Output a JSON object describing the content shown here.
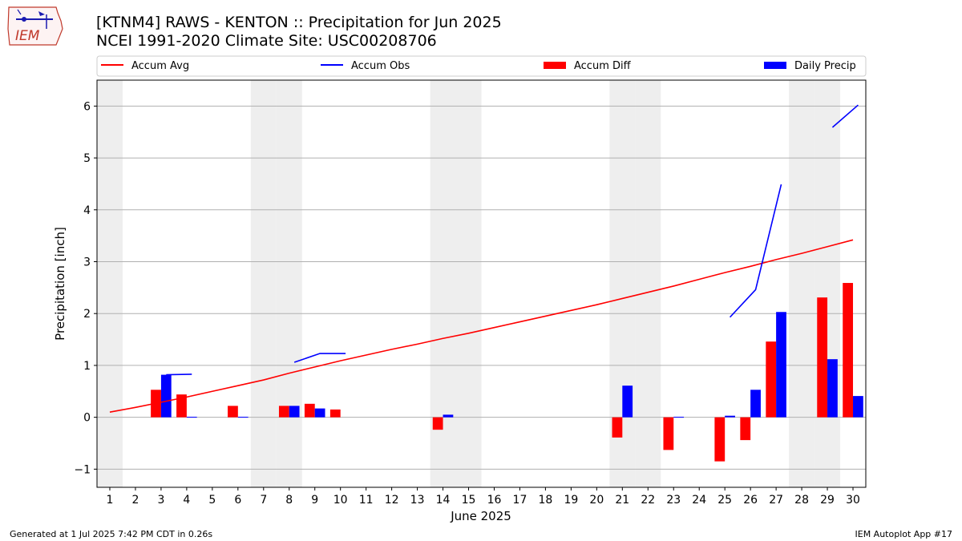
{
  "header": {
    "title_line1": "[KTNM4] RAWS - KENTON :: Precipitation for Jun 2025",
    "title_line2": "NCEI 1991-2020 Climate Site: USC00208706",
    "logo_text": "IEM"
  },
  "footer": {
    "left": "Generated at 1 Jul 2025 7:42 PM CDT in 0.26s",
    "right": "IEM Autoplot App #17"
  },
  "colors": {
    "accum_avg": "#ff0000",
    "accum_obs": "#0000ff",
    "accum_diff": "#ff0000",
    "daily_precip": "#0000ff",
    "weekend_shade": "#eeeeee",
    "grid": "#b0b0b0"
  },
  "chart_data": {
    "type": "bar",
    "xlabel": "June 2025",
    "ylabel": "Precipitation [inch]",
    "x": [
      1,
      2,
      3,
      4,
      5,
      6,
      7,
      8,
      9,
      10,
      11,
      12,
      13,
      14,
      15,
      16,
      17,
      18,
      19,
      20,
      21,
      22,
      23,
      24,
      25,
      26,
      27,
      28,
      29,
      30
    ],
    "xlim": [
      0.5,
      30.5
    ],
    "ylim": [
      -1.35,
      6.5
    ],
    "yticks": [
      -1,
      0,
      1,
      2,
      3,
      4,
      5,
      6
    ],
    "ytick_labels": [
      "−1",
      "0",
      "1",
      "2",
      "3",
      "4",
      "5",
      "6"
    ],
    "grid": "y",
    "legend_position": "top",
    "weekend_days": [
      1,
      7,
      8,
      14,
      15,
      21,
      22,
      28,
      29
    ],
    "series": [
      {
        "name": "Accum Avg",
        "kind": "line",
        "values": [
          0.1,
          0.19,
          0.29,
          0.39,
          0.5,
          0.61,
          0.72,
          0.85,
          0.97,
          1.09,
          1.2,
          1.31,
          1.41,
          1.52,
          1.62,
          1.73,
          1.84,
          1.95,
          2.06,
          2.17,
          2.29,
          2.41,
          2.53,
          2.66,
          2.79,
          2.91,
          3.04,
          3.16,
          3.29,
          3.42
        ]
      },
      {
        "name": "Accum Obs",
        "kind": "line",
        "segments": [
          [
            [
              3,
              0.82
            ],
            [
              4,
              0.83
            ]
          ],
          [
            [
              8,
              1.06
            ],
            [
              9,
              1.23
            ],
            [
              10,
              1.23
            ]
          ],
          [
            [
              25,
              1.93
            ],
            [
              26,
              2.46
            ],
            [
              27,
              4.49
            ]
          ],
          [
            [
              29,
              5.59
            ],
            [
              30,
              6.02
            ]
          ]
        ]
      },
      {
        "name": "Accum Diff",
        "kind": "bar",
        "points": [
          [
            3,
            0.53
          ],
          [
            4,
            0.44
          ],
          [
            6,
            0.22
          ],
          [
            8,
            0.22
          ],
          [
            9,
            0.26
          ],
          [
            10,
            0.15
          ],
          [
            14,
            -0.24
          ],
          [
            21,
            -0.39
          ],
          [
            23,
            -0.63
          ],
          [
            25,
            -0.85
          ],
          [
            26,
            -0.44
          ],
          [
            27,
            1.46
          ],
          [
            29,
            2.31
          ],
          [
            30,
            2.59
          ]
        ]
      },
      {
        "name": "Daily Precip",
        "kind": "bar",
        "points": [
          [
            3,
            0.82
          ],
          [
            4,
            0.01
          ],
          [
            6,
            0.01
          ],
          [
            8,
            0.22
          ],
          [
            9,
            0.17
          ],
          [
            14,
            0.05
          ],
          [
            21,
            0.61
          ],
          [
            23,
            0.01
          ],
          [
            25,
            0.03
          ],
          [
            26,
            0.53
          ],
          [
            27,
            2.03
          ],
          [
            29,
            1.12
          ],
          [
            30,
            0.41
          ]
        ]
      }
    ]
  }
}
